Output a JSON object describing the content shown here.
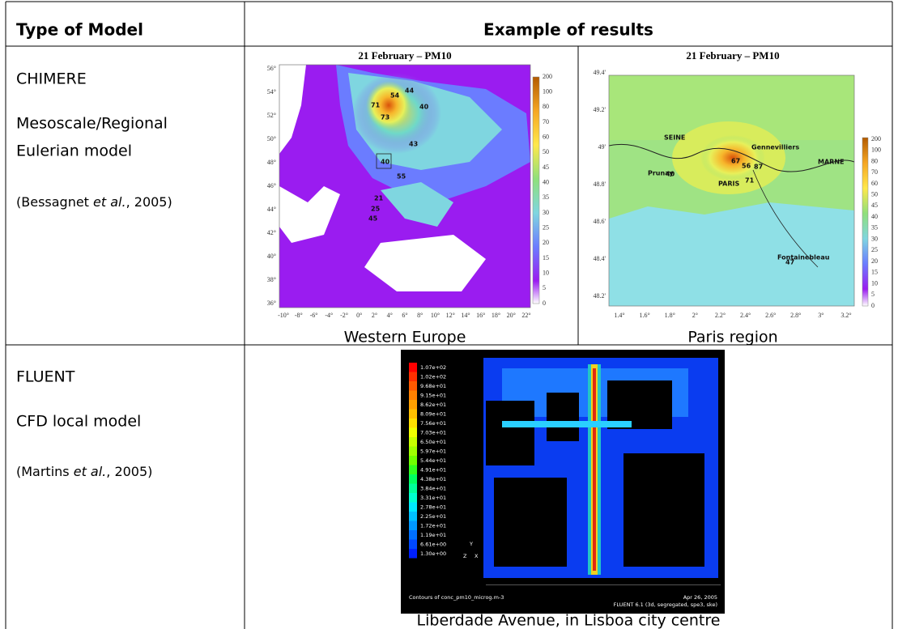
{
  "table": {
    "headers": [
      "Type of Model",
      "Example of results"
    ],
    "rows": [
      {
        "model": {
          "name": "CHIMERE",
          "lines": [
            "Mesoscale/Regional",
            "Eulerian model"
          ],
          "citation": [
            "(Bessagnet ",
            "et al.",
            ", 2005)"
          ]
        },
        "results": [
          {
            "title": "21 February – PM10",
            "caption": "Western Europe",
            "y_labels": [
              "56°",
              "54°",
              "52°",
              "50°",
              "48°",
              "46°",
              "44°",
              "42°",
              "40°",
              "38°",
              "36°"
            ],
            "x_labels": [
              "-10°",
              "-8°",
              "-6°",
              "-4°",
              "-2°",
              "0°",
              "2°",
              "4°",
              "6°",
              "8°",
              "10°",
              "12°",
              "14°",
              "16°",
              "18°",
              "20°",
              "22°"
            ],
            "colorbar": [
              "200",
              "100",
              "80",
              "70",
              "60",
              "50",
              "45",
              "40",
              "35",
              "30",
              "25",
              "20",
              "15",
              "10",
              "5",
              "0"
            ],
            "marks": [
              "54",
              "44",
              "40",
              "71",
              "73",
              "40",
              "43",
              "55",
              "21",
              "25",
              "45"
            ]
          },
          {
            "title": "21 February – PM10",
            "caption": "Paris region",
            "y_labels": [
              "49.4'",
              "49.2'",
              "49'",
              "48.8'",
              "48.6'",
              "48.4'",
              "48.2'"
            ],
            "x_labels": [
              "1.4°",
              "1.6°",
              "1.8°",
              "2°",
              "2.2°",
              "2.4°",
              "2.6°",
              "2.8°",
              "3°",
              "3.2°"
            ],
            "colorbar": [
              "200",
              "100",
              "80",
              "70",
              "60",
              "50",
              "45",
              "40",
              "35",
              "30",
              "25",
              "20",
              "15",
              "10",
              "5",
              "0"
            ],
            "places": [
              "SEINE",
              "Gennevilliers",
              "MARNE",
              "Prunay",
              "PARIS",
              "Fontainebleau"
            ],
            "marks": [
              "40",
              "67",
              "56",
              "87",
              "71",
              "47"
            ]
          }
        ]
      },
      {
        "model": {
          "name": "FLUENT",
          "lines": [
            "CFD local model"
          ],
          "citation": [
            "(Martins ",
            "et al.",
            ", 2005)"
          ]
        },
        "results": [
          {
            "caption": "Liberdade Avenue, in Lisboa city centre",
            "legend": [
              "1.07e+02",
              "1.02e+02",
              "9.68e+01",
              "9.15e+01",
              "8.62e+01",
              "8.09e+01",
              "7.56e+01",
              "7.03e+01",
              "6.50e+01",
              "5.97e+01",
              "5.44e+01",
              "4.91e+01",
              "4.38e+01",
              "3.84e+01",
              "3.31e+01",
              "2.78e+01",
              "2.25e+01",
              "1.72e+01",
              "1.19e+01",
              "6.61e+00",
              "1.30e+00"
            ],
            "axes": [
              "Y",
              "Z",
              "X"
            ],
            "footer_left": "Contours of conc_pm10_microg.m-3",
            "footer_date": "Apr 26, 2005",
            "footer_right": "FLUENT 6.1 (3d, segregated, spe3, ske)"
          }
        ]
      }
    ]
  }
}
